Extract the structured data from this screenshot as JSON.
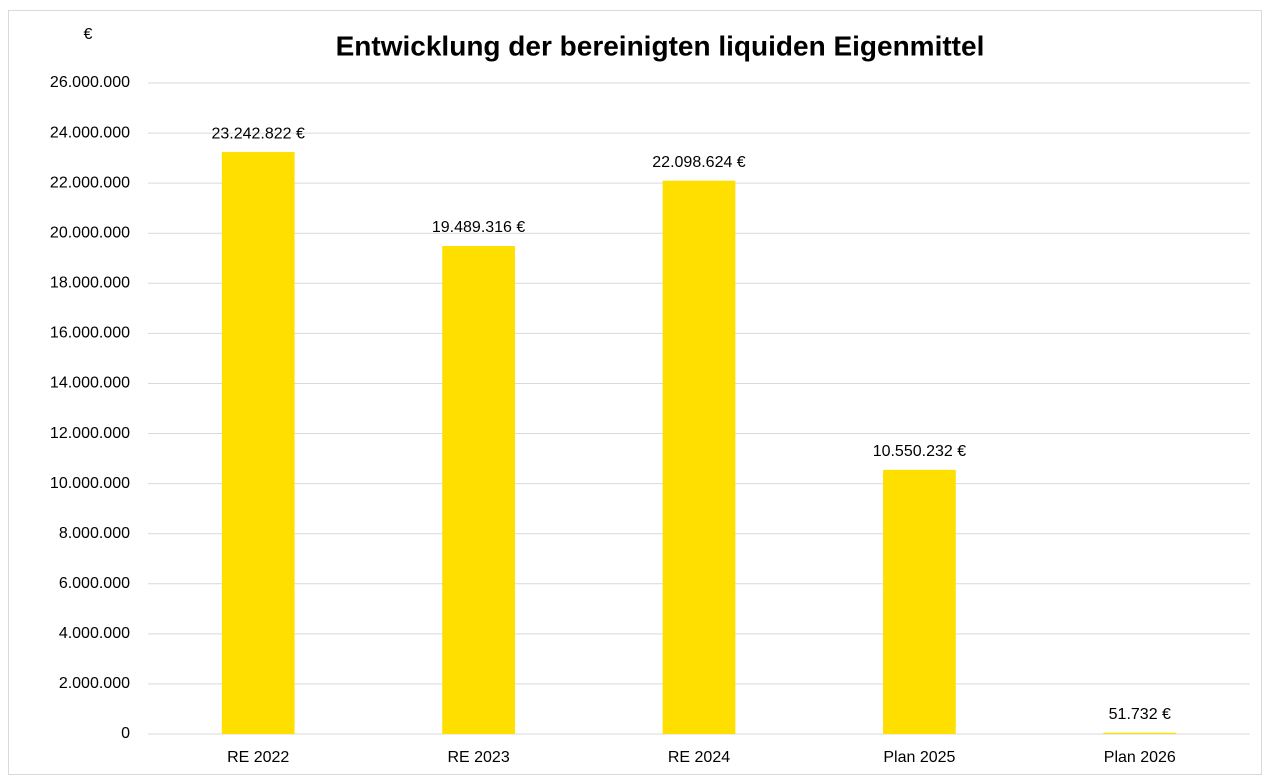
{
  "chart_data": {
    "type": "bar",
    "title": "Entwicklung der bereinigten liquiden Eigenmittel",
    "y_label": "€",
    "categories": [
      "RE 2022",
      "RE 2023",
      "RE 2024",
      "Plan 2025",
      "Plan 2026"
    ],
    "values": [
      23242822,
      19489316,
      22098624,
      10550232,
      51732
    ],
    "value_labels": [
      "23.242.822 €",
      "19.489.316 €",
      "22.098.624 €",
      "10.550.232 €",
      "51.732 €"
    ],
    "color": "#ffdf00",
    "ylim": [
      0,
      26000000
    ],
    "yticks": [
      0,
      {
        "value": 2000000,
        "label": "2.000.000"
      },
      {
        "value": 4000000,
        "label": "4.000.000"
      },
      {
        "value": 6000000,
        "label": "6.000.000"
      },
      {
        "value": 8000000,
        "label": "8.000.000"
      },
      {
        "value": 10000000,
        "label": "10.000.000"
      },
      {
        "value": 12000000,
        "label": "12.000.000"
      },
      {
        "value": 14000000,
        "label": "14.000.000"
      },
      {
        "value": 16000000,
        "label": "16.000.000"
      },
      {
        "value": 18000000,
        "label": "18.000.000"
      },
      {
        "value": 20000000,
        "label": "20.000.000"
      },
      {
        "value": 22000000,
        "label": "22.000.000"
      },
      {
        "value": 24000000,
        "label": "24.000.000"
      },
      {
        "value": 26000000,
        "label": "26.000.000"
      }
    ],
    "grid": true
  }
}
